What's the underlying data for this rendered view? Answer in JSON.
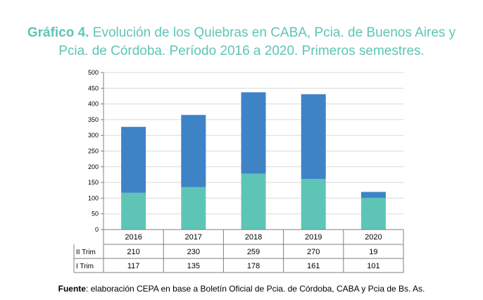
{
  "title": {
    "lead": "Gráfico 4.",
    "line1_rest": "Evolución de los Quiebras en CABA, Pcia. de Buenos Aires y",
    "line2": "Pcia. de Córdoba. Período 2016 a 2020. Primeros semestres."
  },
  "source": {
    "label": "Fuente",
    "text": ": elaboración CEPA en base a Boletín Oficial de Pcia. de Córdoba, CABA y Pcia de Bs. As."
  },
  "colors": {
    "title": "#5ec5b6",
    "series_I": "#5ec5b6",
    "series_II": "#3f83c7",
    "grid": "#d9d9d9"
  },
  "chart_data": {
    "type": "bar",
    "stacked": true,
    "categories": [
      "2016",
      "2017",
      "2018",
      "2019",
      "2020"
    ],
    "series": [
      {
        "name": "I Trim",
        "values": [
          117,
          135,
          178,
          161,
          101
        ]
      },
      {
        "name": "II Trim",
        "values": [
          210,
          230,
          259,
          270,
          19
        ]
      }
    ],
    "ylim": [
      0,
      500
    ],
    "yticks": [
      0,
      50,
      100,
      150,
      200,
      250,
      300,
      350,
      400,
      450,
      500
    ],
    "grid": true,
    "data_table": true,
    "table_row_order": [
      "II Trim",
      "I Trim"
    ]
  }
}
